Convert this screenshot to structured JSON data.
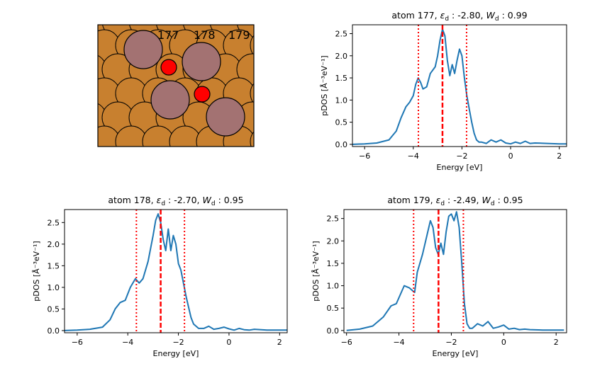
{
  "structure": {
    "atom_labels": [
      "177",
      "178",
      "179"
    ]
  },
  "colors": {
    "cu": "#c8802f",
    "adsorbate": "#a37272",
    "oxygen": "#ff0000",
    "line": "#1f77b4",
    "marker": "#ff0000"
  },
  "chart_data": [
    {
      "type": "line",
      "title": "atom 177, εd : -2.80, Wd : 0.99",
      "title_parts": {
        "prefix": "atom 177, ",
        "eps": "-2.80",
        "w": "0.99"
      },
      "xlabel": "Energy [eV]",
      "ylabel": "pDOS [Å⁻³eV⁻¹]",
      "xlim": [
        -6.5,
        2.3
      ],
      "ylim": [
        -0.05,
        2.7
      ],
      "xticks": [
        -6,
        -4,
        -2,
        0,
        2
      ],
      "yticks": [
        0.0,
        0.5,
        1.0,
        1.5,
        2.0,
        2.5
      ],
      "center": -2.8,
      "width_lines": [
        -3.79,
        -1.81
      ],
      "x": [
        -6.5,
        -6.0,
        -5.5,
        -5.0,
        -4.7,
        -4.5,
        -4.3,
        -4.15,
        -4.0,
        -3.9,
        -3.8,
        -3.7,
        -3.6,
        -3.45,
        -3.3,
        -3.1,
        -3.0,
        -2.9,
        -2.8,
        -2.7,
        -2.6,
        -2.5,
        -2.4,
        -2.3,
        -2.2,
        -2.1,
        -2.0,
        -1.9,
        -1.8,
        -1.7,
        -1.6,
        -1.5,
        -1.4,
        -1.3,
        -1.2,
        -1.0,
        -0.8,
        -0.6,
        -0.4,
        -0.2,
        0.0,
        0.2,
        0.4,
        0.6,
        0.8,
        1.0,
        1.5,
        2.0,
        2.3
      ],
      "values": [
        0.0,
        0.01,
        0.03,
        0.1,
        0.3,
        0.6,
        0.85,
        0.95,
        1.1,
        1.35,
        1.5,
        1.4,
        1.25,
        1.3,
        1.6,
        1.75,
        2.0,
        2.35,
        2.6,
        2.45,
        1.9,
        1.55,
        1.8,
        1.6,
        1.9,
        2.15,
        2.0,
        1.5,
        1.1,
        0.8,
        0.5,
        0.25,
        0.1,
        0.05,
        0.05,
        0.02,
        0.1,
        0.05,
        0.1,
        0.03,
        0.01,
        0.05,
        0.02,
        0.07,
        0.02,
        0.03,
        0.02,
        0.01,
        0.01
      ]
    },
    {
      "type": "line",
      "title": "atom 178, εd : -2.70, Wd : 0.95",
      "title_parts": {
        "prefix": "atom 178, ",
        "eps": "-2.70",
        "w": "0.95"
      },
      "xlabel": "Energy [eV]",
      "ylabel": "pDOS [Å⁻³eV⁻¹]",
      "xlim": [
        -6.5,
        2.3
      ],
      "ylim": [
        -0.05,
        2.8
      ],
      "xticks": [
        -6,
        -4,
        -2,
        0,
        2
      ],
      "yticks": [
        0.0,
        0.5,
        1.0,
        1.5,
        2.0,
        2.5
      ],
      "center": -2.7,
      "width_lines": [
        -3.66,
        -1.76
      ],
      "x": [
        -6.5,
        -6.0,
        -5.5,
        -5.0,
        -4.7,
        -4.5,
        -4.3,
        -4.1,
        -3.9,
        -3.7,
        -3.55,
        -3.4,
        -3.2,
        -3.0,
        -2.9,
        -2.8,
        -2.7,
        -2.6,
        -2.5,
        -2.4,
        -2.3,
        -2.2,
        -2.1,
        -2.0,
        -1.9,
        -1.8,
        -1.7,
        -1.6,
        -1.5,
        -1.4,
        -1.2,
        -1.0,
        -0.8,
        -0.6,
        -0.4,
        -0.2,
        0.0,
        0.2,
        0.4,
        0.6,
        0.8,
        1.0,
        1.5,
        2.0,
        2.3
      ],
      "values": [
        0.0,
        0.01,
        0.03,
        0.08,
        0.25,
        0.5,
        0.65,
        0.7,
        1.0,
        1.2,
        1.1,
        1.2,
        1.6,
        2.2,
        2.55,
        2.7,
        2.5,
        2.1,
        1.85,
        2.35,
        1.85,
        2.2,
        2.0,
        1.55,
        1.4,
        1.1,
        0.8,
        0.55,
        0.3,
        0.15,
        0.05,
        0.05,
        0.1,
        0.03,
        0.05,
        0.08,
        0.04,
        0.01,
        0.05,
        0.02,
        0.01,
        0.03,
        0.01,
        0.01,
        0.01
      ]
    },
    {
      "type": "line",
      "title": "atom 179, εd : -2.49, Wd : 0.95",
      "title_parts": {
        "prefix": "atom 179, ",
        "eps": "-2.49",
        "w": "0.95"
      },
      "xlabel": "Energy [eV]",
      "ylabel": "pDOS [Å⁻³eV⁻¹]",
      "xlim": [
        -6.1,
        2.4
      ],
      "ylim": [
        -0.05,
        2.7
      ],
      "xticks": [
        -6,
        -4,
        -2,
        0,
        2
      ],
      "yticks": [
        0.0,
        0.5,
        1.0,
        1.5,
        2.0,
        2.5
      ],
      "center": -2.49,
      "width_lines": [
        -3.44,
        -1.54
      ],
      "x": [
        -6.0,
        -5.5,
        -5.0,
        -4.6,
        -4.3,
        -4.1,
        -3.8,
        -3.6,
        -3.4,
        -3.3,
        -3.1,
        -2.9,
        -2.8,
        -2.7,
        -2.6,
        -2.5,
        -2.4,
        -2.3,
        -2.2,
        -2.1,
        -2.0,
        -1.9,
        -1.8,
        -1.7,
        -1.6,
        -1.5,
        -1.4,
        -1.3,
        -1.2,
        -1.0,
        -0.8,
        -0.6,
        -0.4,
        -0.2,
        0.0,
        0.2,
        0.4,
        0.6,
        0.8,
        1.0,
        1.5,
        2.0,
        2.3
      ],
      "values": [
        0.0,
        0.03,
        0.1,
        0.3,
        0.55,
        0.6,
        1.0,
        0.95,
        0.85,
        1.3,
        1.7,
        2.2,
        2.45,
        2.3,
        1.85,
        1.7,
        1.95,
        1.7,
        2.2,
        2.55,
        2.6,
        2.45,
        2.65,
        2.3,
        1.5,
        0.6,
        0.15,
        0.05,
        0.05,
        0.15,
        0.1,
        0.2,
        0.05,
        0.08,
        0.12,
        0.03,
        0.05,
        0.02,
        0.03,
        0.02,
        0.01,
        0.01,
        0.01
      ]
    }
  ]
}
